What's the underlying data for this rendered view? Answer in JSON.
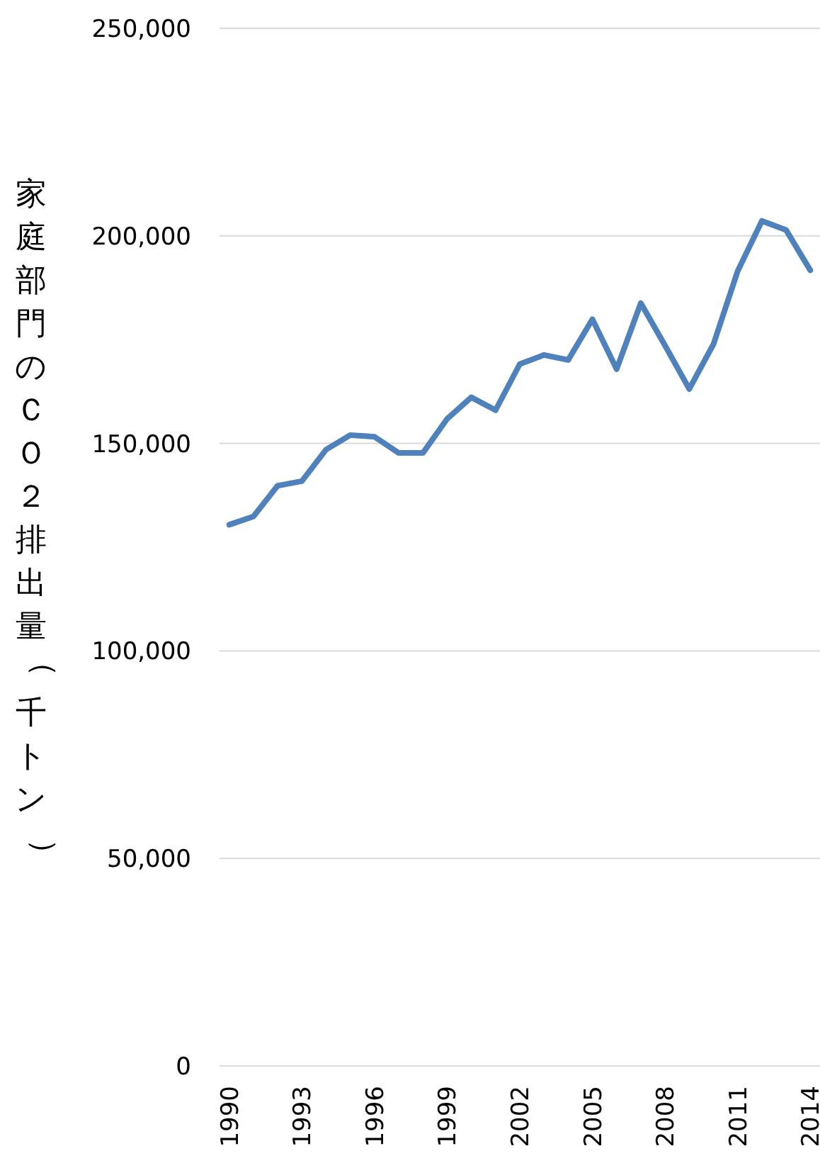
{
  "chart_data": {
    "type": "line",
    "ylabel": "家庭部門のＣＯ２排出量（千トン）",
    "x": [
      1990,
      1991,
      1992,
      1993,
      1994,
      1995,
      1996,
      1997,
      1998,
      1999,
      2000,
      2001,
      2002,
      2003,
      2004,
      2005,
      2006,
      2007,
      2008,
      2009,
      2010,
      2011,
      2012,
      2013,
      2014
    ],
    "series": [
      {
        "color": "#4f81bd",
        "values": [
          130400,
          132400,
          139800,
          140900,
          148500,
          152000,
          151600,
          147700,
          147700,
          155900,
          161100,
          158000,
          169100,
          171300,
          170100,
          179900,
          167900,
          183800,
          173600,
          163100,
          173900,
          191500,
          203600,
          201400,
          191700
        ]
      }
    ],
    "xlim": [
      1989.6,
      2014.4
    ],
    "xticks": [
      1990,
      1993,
      1996,
      1999,
      2002,
      2005,
      2008,
      2011,
      2014
    ],
    "ylim": [
      0,
      250000
    ],
    "yticks": [
      {
        "value": 0,
        "label": "0"
      },
      {
        "value": 50000,
        "label": "50,000"
      },
      {
        "value": 100000,
        "label": "100,000"
      },
      {
        "value": 150000,
        "label": "150,000"
      },
      {
        "value": 200000,
        "label": "200,000"
      },
      {
        "value": 250000,
        "label": "250,000"
      }
    ],
    "grid": "y",
    "marker": "none",
    "line_style": "solid"
  }
}
